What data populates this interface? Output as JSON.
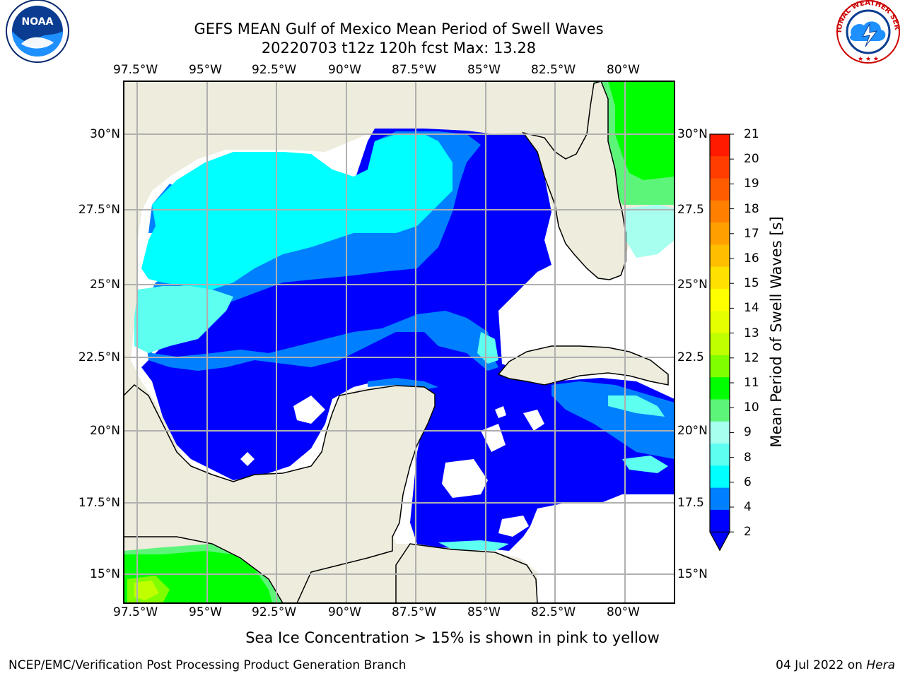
{
  "header": {
    "title": "GEFS MEAN Gulf of Mexico Mean Period of Swell Waves",
    "subtitle": "20220703 t12z 120h fcst   Max: 13.28"
  },
  "logos": {
    "left": "NOAA",
    "left_ring": "NATIONAL OCEANIC AND ATMOSPHERIC ADMINISTRATION · U.S. DEPARTMENT OF COMMERCE ·",
    "right_ring": "NATIONAL WEATHER SERVICE"
  },
  "axes": {
    "lon_labels": [
      "97.5°W",
      "95°W",
      "92.5°W",
      "90°W",
      "87.5°W",
      "85°W",
      "82.5°W",
      "80°W"
    ],
    "lat_labels_left": [
      "30°N",
      "27.5°N",
      "25°N",
      "22.5°N",
      "20°N",
      "17.5°N",
      "15°N"
    ],
    "lat_labels_right": [
      "30°N",
      "27.5",
      "25°N",
      "22.5",
      "20°N",
      "17.5",
      "15°N"
    ]
  },
  "colorbar": {
    "title": "Mean Period of Swell Waves [s]",
    "ticks": [
      "21",
      "20",
      "19",
      "18",
      "17",
      "16",
      "15",
      "14",
      "13",
      "12",
      "11",
      "10",
      "9",
      "8",
      "6",
      "4",
      "2"
    ],
    "colors": [
      "#ff1a00",
      "#ff3d00",
      "#ff5c00",
      "#ff8000",
      "#ff9f00",
      "#ffbf00",
      "#ffe000",
      "#ffff00",
      "#e6ff00",
      "#bfff00",
      "#7fff00",
      "#00ff00",
      "#5cf57a",
      "#a6ffef",
      "#5cfff0",
      "#00ffff",
      "#0080ff",
      "#0000ff"
    ]
  },
  "caption": "Sea Ice Concentration > 15% is shown in pink to yellow",
  "footer": {
    "left": "NCEP/EMC/Verification Post Processing Product Generation Branch",
    "date": "04 Jul 2022 on ",
    "machine": "Hera"
  }
}
